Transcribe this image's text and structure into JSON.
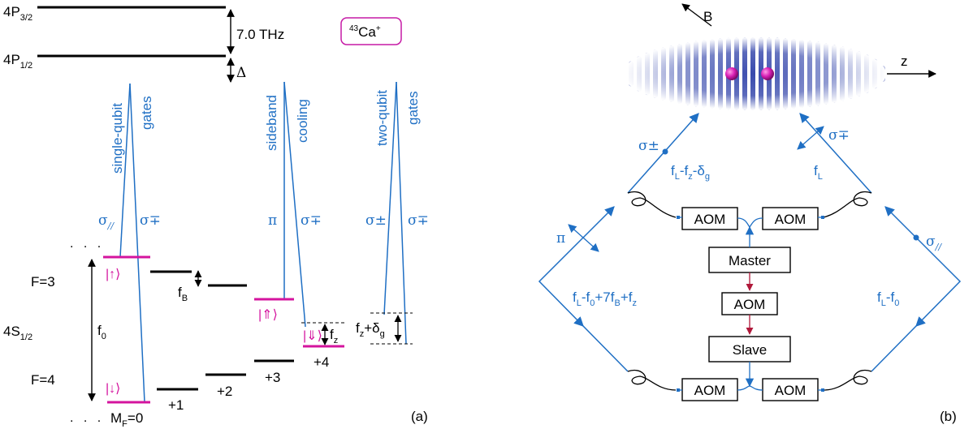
{
  "panel_a": {
    "levels": {
      "p32": "4P",
      "p32_sub": "3/2",
      "p12": "4P",
      "p12_sub": "1/2",
      "s12": "4S",
      "s12_sub": "1/2"
    },
    "fine_structure": "7.0 THz",
    "delta": "Δ",
    "ion": {
      "mass": "43",
      "name": "Ca",
      "charge": "+"
    },
    "beam_groups": {
      "single_qubit": {
        "line1": "single-qubit",
        "line2": "gates",
        "pol1": "σ",
        "pol1_sub": "//",
        "pol2": "σ∓"
      },
      "sideband": {
        "line1": "sideband",
        "line2": "cooling",
        "pol1": "π",
        "pol2": "σ∓"
      },
      "two_qubit": {
        "line1": "two-qubit",
        "line2": "gates",
        "pol1": "σ±",
        "pol2": "σ∓"
      }
    },
    "states": {
      "up": "|↑⟩",
      "up2": "|⇑⟩",
      "down": "|↓⟩",
      "down2": "|⇓⟩"
    },
    "hyperfine": {
      "f3": "F=3",
      "f4": "F=4",
      "f0": "f",
      "f0_sub": "0",
      "fB": "f",
      "fB_sub": "B",
      "fz": "f",
      "fz_sub": "z",
      "fz_delta": "+δ",
      "fz_delta_sub": "g"
    },
    "mf": {
      "label": "M",
      "label_sub": "F",
      "zero": "=0",
      "p1": "+1",
      "p2": "+2",
      "p3": "+3",
      "p4": "+4"
    },
    "panel_label": "(a)"
  },
  "panel_b": {
    "field": "B",
    "axis": "z",
    "pol_top_left": "σ±",
    "pol_top_right": "σ∓",
    "pol_left": "π",
    "pol_right": "σ",
    "pol_right_sub": "//",
    "freq_top_left": {
      "a": "f",
      "a_sub": "L",
      "b": "-f",
      "b_sub": "z",
      "c": "-δ",
      "c_sub": "g"
    },
    "freq_top_right": {
      "a": "f",
      "a_sub": "L"
    },
    "freq_left": {
      "a": "f",
      "a_sub": "L",
      "b": "-f",
      "b_sub": "0",
      "c": "+7f",
      "c_sub": "B",
      "d": "+f",
      "d_sub": "z"
    },
    "freq_right": {
      "a": "f",
      "a_sub": "L",
      "b": "-f",
      "b_sub": "0"
    },
    "aom": "AOM",
    "master": "Master",
    "slave": "Slave",
    "panel_label": "(b)"
  },
  "colors": {
    "blue": "#1f6fc4",
    "magenta": "#d4149e",
    "dark_red": "#b0183a",
    "black": "#000000"
  }
}
